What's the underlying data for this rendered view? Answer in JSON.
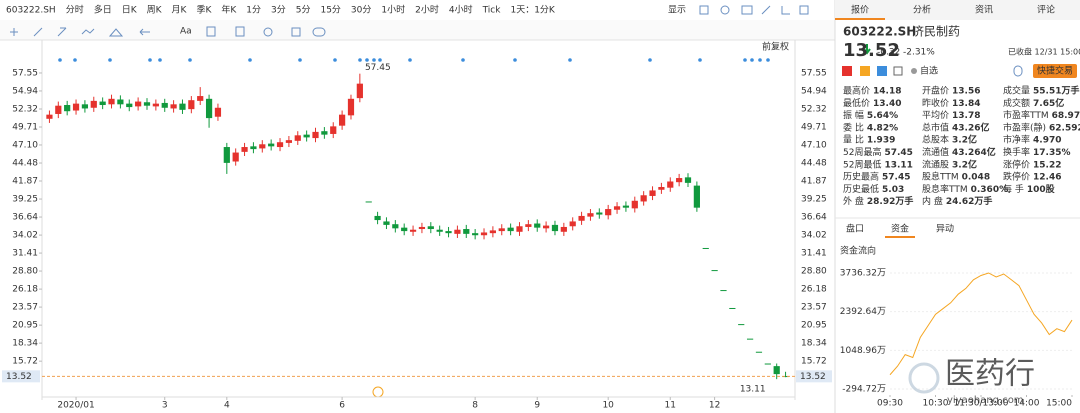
{
  "toolbar": {
    "symbol": "603222.SH",
    "periods": [
      "分时",
      "多日",
      "日K",
      "周K",
      "月K",
      "季K",
      "年K",
      "1分",
      "3分",
      "5分",
      "15分",
      "30分",
      "1小时",
      "2小时",
      "4小时",
      "Tick",
      "1天：1分K"
    ],
    "active": 2,
    "display": "显示",
    "font_label": "Aa"
  },
  "chart_data": [
    {
      "type": "candlestick",
      "adjust_label": "前复权",
      "open": [
        50.9,
        51.6,
        52.9,
        52.1,
        53.0,
        52.5,
        53.4,
        53.0,
        53.7,
        53.1,
        52.7,
        53.3,
        52.7,
        53.2,
        52.4,
        53.1,
        52.3,
        53.5,
        53.8,
        51.2,
        46.8,
        44.7,
        46.1,
        46.9,
        46.6,
        47.3,
        46.8,
        47.4,
        47.7,
        48.6,
        48.1,
        49.1,
        48.7,
        49.9,
        51.4,
        53.9,
        38.9,
        36.8,
        36.0,
        35.6,
        35.1,
        34.5,
        34.9,
        35.3,
        34.8,
        34.6,
        34.2,
        34.9,
        34.3,
        34.0,
        34.3,
        34.6,
        35.1,
        34.5,
        35.2,
        35.7,
        35.0,
        35.5,
        34.5,
        35.3,
        36.1,
        36.7,
        37.3,
        36.9,
        37.7,
        38.3,
        37.9,
        38.9,
        39.7,
        40.6,
        40.9,
        41.7,
        42.4,
        41.2,
        32.15,
        28.94,
        26.04,
        23.44,
        21.1,
        18.99,
        17.09,
        15.38,
        15.0,
        13.56
      ],
      "high": [
        52.1,
        53.4,
        53.5,
        53.7,
        53.6,
        54.1,
        54.0,
        54.4,
        54.3,
        53.7,
        54.0,
        53.9,
        53.7,
        53.8,
        53.6,
        53.7,
        54.2,
        55.5,
        54.4,
        53.1,
        47.4,
        46.6,
        47.4,
        47.5,
        47.8,
        47.9,
        48.1,
        48.4,
        49.1,
        49.2,
        49.6,
        49.7,
        50.4,
        52.1,
        54.4,
        57.45,
        38.9,
        37.4,
        36.6,
        36.2,
        35.7,
        35.4,
        35.8,
        35.9,
        35.4,
        35.2,
        35.4,
        35.5,
        34.9,
        35.0,
        35.3,
        35.6,
        35.7,
        35.9,
        36.2,
        36.3,
        36.0,
        36.1,
        35.8,
        36.6,
        37.4,
        37.8,
        37.9,
        38.4,
        38.8,
        38.9,
        39.6,
        40.4,
        41.1,
        41.6,
        42.4,
        42.9,
        43.0,
        41.8,
        32.15,
        28.94,
        26.04,
        23.44,
        21.1,
        18.99,
        17.09,
        15.38,
        15.38,
        14.18
      ],
      "low": [
        50.3,
        51.0,
        51.4,
        51.5,
        51.8,
        51.9,
        52.3,
        52.4,
        52.4,
        52.0,
        52.1,
        52.2,
        52.1,
        51.9,
        51.8,
        51.6,
        51.7,
        52.9,
        49.6,
        50.6,
        42.9,
        44.1,
        45.5,
        45.9,
        46.0,
        46.3,
        46.2,
        46.8,
        47.1,
        47.6,
        47.5,
        48.0,
        48.1,
        49.3,
        50.8,
        53.3,
        38.9,
        35.6,
        34.9,
        34.4,
        34.0,
        33.9,
        34.3,
        34.3,
        33.9,
        33.7,
        33.6,
        33.6,
        33.4,
        33.4,
        33.7,
        34.0,
        34.0,
        33.9,
        34.6,
        34.5,
        34.4,
        34.0,
        33.9,
        34.7,
        35.5,
        36.1,
        36.4,
        36.3,
        37.1,
        37.4,
        37.3,
        38.3,
        39.1,
        40.0,
        40.3,
        41.1,
        41.0,
        37.4,
        32.15,
        28.94,
        26.04,
        23.44,
        21.1,
        18.99,
        17.09,
        15.38,
        13.11,
        13.4
      ],
      "close": [
        51.5,
        52.8,
        52.0,
        53.1,
        52.4,
        53.5,
        52.9,
        53.8,
        53.0,
        52.6,
        53.4,
        52.8,
        53.1,
        52.5,
        53.0,
        52.2,
        53.6,
        54.2,
        51.0,
        52.5,
        44.5,
        46.0,
        46.8,
        46.5,
        47.2,
        46.9,
        47.5,
        47.8,
        48.5,
        48.2,
        49.0,
        48.6,
        49.8,
        51.5,
        53.8,
        56.0,
        38.9,
        36.2,
        35.5,
        35.0,
        34.6,
        34.8,
        35.2,
        34.9,
        34.5,
        34.3,
        34.8,
        34.2,
        34.0,
        34.4,
        34.7,
        35.0,
        34.6,
        35.3,
        35.6,
        35.1,
        35.4,
        34.6,
        35.2,
        36.0,
        36.8,
        37.2,
        37.0,
        37.8,
        38.2,
        38.0,
        39.0,
        39.8,
        40.5,
        41.0,
        41.8,
        42.3,
        41.6,
        38.0,
        32.15,
        28.94,
        26.04,
        23.44,
        21.1,
        18.99,
        17.09,
        15.38,
        13.84,
        13.52
      ],
      "up_color": "#e5322d",
      "down_color": "#10993d",
      "last_line_color": "#f0a050",
      "xlim": [
        -0.5,
        83.5
      ],
      "xticks": [
        {
          "value": 3,
          "label": "2020/01"
        },
        {
          "value": 13,
          "label": "3"
        },
        {
          "value": 20,
          "label": "4"
        },
        {
          "value": 33,
          "label": "6"
        },
        {
          "value": 48,
          "label": "8"
        },
        {
          "value": 55,
          "label": "9"
        },
        {
          "value": 63,
          "label": "10"
        },
        {
          "value": 70,
          "label": "11"
        },
        {
          "value": 75,
          "label": "12"
        }
      ],
      "ylim": [
        10.81,
        61.61
      ],
      "yticks": [
        57.55,
        54.94,
        52.32,
        49.71,
        {
          "value": 47.1,
          "label": "47.10"
        },
        44.48,
        41.87,
        39.25,
        36.64,
        34.02,
        31.41,
        {
          "value": 28.8,
          "label": "28.80"
        },
        26.18,
        23.57,
        20.95,
        18.34,
        15.72
      ],
      "grid": false
    },
    {
      "type": "line",
      "title": "资金流向",
      "x": [
        0,
        10,
        20,
        30,
        40,
        50,
        60,
        70,
        80,
        90,
        100,
        110,
        120,
        130,
        140,
        150,
        160,
        170,
        180,
        190,
        200,
        210,
        220,
        230,
        240
      ],
      "series": [
        {
          "color": "#f5a623",
          "values": [
            200,
            500,
            900,
            800,
            1500,
            1900,
            2300,
            2500,
            2700,
            3000,
            3200,
            3500,
            3650,
            3736.32,
            3600,
            3700,
            3500,
            3300,
            2800,
            2300,
            2000,
            1600,
            1800,
            1700,
            2100
          ]
        }
      ],
      "xlim": [
        0,
        240
      ],
      "xticks": [
        {
          "value": 0,
          "label": "09:30"
        },
        {
          "value": 60,
          "label": "10:30"
        },
        {
          "value": 120,
          "label": "11:30/13:00"
        },
        {
          "value": 180,
          "label": "14:00"
        },
        {
          "value": 240,
          "label": "15:00"
        }
      ],
      "ylim": [
        -503,
        4118
      ],
      "yticks": [
        {
          "value": 3736.32,
          "label": "3736.32万"
        },
        {
          "value": 2392.64,
          "label": "2392.64万"
        },
        {
          "value": 1048.96,
          "label": "1048.96万"
        },
        {
          "value": -294.72,
          "label": "-294.72万"
        }
      ],
      "grid": true
    }
  ],
  "panel": {
    "tabs": [
      "报价",
      "分析",
      "资讯",
      "评论"
    ],
    "active_tab": 0,
    "code": "603222.SH",
    "name": "济民制药",
    "price": "13.52",
    "change": "-0.32",
    "change_pct": "-2.31%",
    "price_color": "down",
    "status": "已收盘 12/31 15:00",
    "watchlist": "自选",
    "quick_trade": "快捷交易",
    "colors": {
      "up": "#e5322d",
      "down": "#10993d",
      "plain": "#333333"
    },
    "quote": [
      [
        {
          "label": "最高价",
          "value": "14.18",
          "color": "up"
        },
        {
          "label": "开盘价",
          "value": "13.56",
          "color": "down"
        },
        {
          "label": "成交量",
          "value": "55.51万手",
          "color": "plain"
        }
      ],
      [
        {
          "label": "最低价",
          "value": "13.40",
          "color": "down"
        },
        {
          "label": "昨收价",
          "value": "13.84",
          "color": "plain"
        },
        {
          "label": "成交额",
          "value": "7.65亿",
          "color": "plain"
        }
      ],
      [
        {
          "label": "振 幅",
          "value": "5.64%",
          "color": "plain"
        },
        {
          "label": "平均价",
          "value": "13.78",
          "color": "down"
        },
        {
          "label": "市盈率TTM",
          "value": "68.979",
          "color": "plain"
        }
      ],
      [
        {
          "label": "委 比",
          "value": "4.82%",
          "color": "up"
        },
        {
          "label": "总市值",
          "value": "43.26亿",
          "color": "plain"
        },
        {
          "label": "市盈率(静)",
          "value": "62.592",
          "color": "plain"
        }
      ],
      [
        {
          "label": "量 比",
          "value": "1.939",
          "color": "plain"
        },
        {
          "label": "总股本",
          "value": "3.2亿",
          "color": "plain"
        },
        {
          "label": "市净率",
          "value": "4.970",
          "color": "plain"
        }
      ],
      [
        {
          "label": "52周最高",
          "value": "57.45",
          "color": "up"
        },
        {
          "label": "流通值",
          "value": "43.264亿",
          "color": "plain"
        },
        {
          "label": "换手率",
          "value": "17.35%",
          "color": "plain"
        }
      ],
      [
        {
          "label": "52周最低",
          "value": "13.11",
          "color": "down"
        },
        {
          "label": "流通股",
          "value": "3.2亿",
          "color": "plain"
        },
        {
          "label": "涨停价",
          "value": "15.22",
          "color": "up"
        }
      ],
      [
        {
          "label": "历史最高",
          "value": "57.45",
          "color": "up"
        },
        {
          "label": "股息TTM",
          "value": "0.048",
          "color": "plain"
        },
        {
          "label": "跌停价",
          "value": "12.46",
          "color": "down"
        }
      ],
      [
        {
          "label": "历史最低",
          "value": "5.03",
          "color": "down"
        },
        {
          "label": "股息率TTM",
          "value": "0.360%",
          "color": "plain"
        },
        {
          "label": "每 手",
          "value": "100股",
          "color": "plain"
        }
      ],
      [
        {
          "label": "外 盘",
          "value": "28.92万手",
          "color": "up"
        },
        {
          "label": "内 盘",
          "value": "24.62万手",
          "color": "down"
        }
      ]
    ],
    "sub_tabs": [
      "盘口",
      "资金",
      "异动"
    ],
    "active_sub_tab": 1
  },
  "watermark": {
    "brand": "医药行",
    "site": "yiyaohang.com"
  }
}
